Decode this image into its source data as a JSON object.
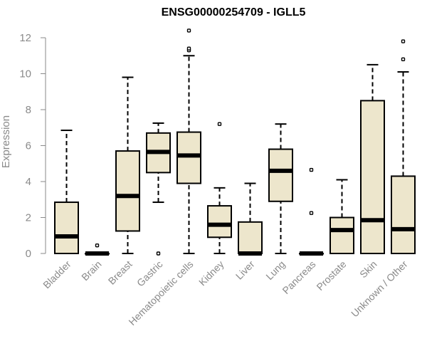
{
  "chart_data": {
    "type": "boxplot",
    "title": "ENSG00000254709 - IGLL5",
    "xlabel": "",
    "ylabel": "Expression",
    "ylim": [
      0,
      12
    ],
    "yticks": [
      0,
      2,
      4,
      6,
      8,
      10,
      12
    ],
    "box_fill": "#ede6cc",
    "box_stroke": "#000000",
    "categories": [
      "Bladder",
      "Brain",
      "Breast",
      "Gastric",
      "Hematopoietic cells",
      "Kidney",
      "Liver",
      "Lung",
      "Pancreas",
      "Prostate",
      "Skin",
      "Unknown / Other"
    ],
    "boxes": [
      {
        "min": 0.0,
        "q1": 0.0,
        "median": 0.95,
        "q3": 2.85,
        "max": 6.85,
        "outliers": []
      },
      {
        "min": 0.0,
        "q1": 0.0,
        "median": 0.0,
        "q3": 0.0,
        "max": 0.0,
        "outliers": [
          0.45
        ]
      },
      {
        "min": 0.0,
        "q1": 1.25,
        "median": 3.2,
        "q3": 5.7,
        "max": 9.8,
        "outliers": []
      },
      {
        "min": 2.85,
        "q1": 4.5,
        "median": 5.65,
        "q3": 6.7,
        "max": 7.25,
        "outliers": [
          0.0
        ]
      },
      {
        "min": 0.0,
        "q1": 3.9,
        "median": 5.45,
        "q3": 6.75,
        "max": 11.0,
        "outliers": [
          11.3,
          11.4,
          12.4
        ]
      },
      {
        "min": 0.0,
        "q1": 0.9,
        "median": 1.6,
        "q3": 2.65,
        "max": 3.65,
        "outliers": [
          7.2
        ]
      },
      {
        "min": 0.0,
        "q1": 0.0,
        "median": 0.0,
        "q3": 1.75,
        "max": 3.9,
        "outliers": []
      },
      {
        "min": 0.0,
        "q1": 2.9,
        "median": 4.6,
        "q3": 5.8,
        "max": 7.2,
        "outliers": []
      },
      {
        "min": 0.0,
        "q1": 0.0,
        "median": 0.0,
        "q3": 0.0,
        "max": 0.0,
        "outliers": [
          2.25,
          4.65
        ]
      },
      {
        "min": 0.0,
        "q1": 0.0,
        "median": 1.3,
        "q3": 2.0,
        "max": 4.1,
        "outliers": []
      },
      {
        "min": 0.0,
        "q1": 0.0,
        "median": 1.85,
        "q3": 8.5,
        "max": 10.5,
        "outliers": []
      },
      {
        "min": 0.0,
        "q1": 0.0,
        "median": 1.35,
        "q3": 4.3,
        "max": 10.1,
        "outliers": [
          10.8,
          11.8
        ]
      }
    ]
  }
}
